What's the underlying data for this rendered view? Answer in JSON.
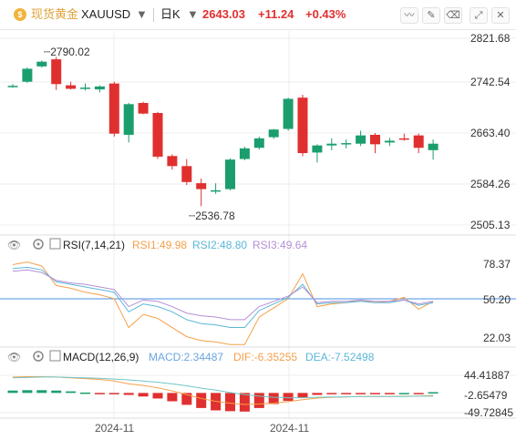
{
  "header": {
    "symbol_name": "现货黄金",
    "ticker": "XAUUSD",
    "timeframe": "日K",
    "last_price": "2643.03",
    "change": "+11.24",
    "change_pct": "+0.43%",
    "icons": [
      "gold-coin-icon",
      "chevron-down-icon",
      "chevron-down-icon",
      "line-chart-icon",
      "pencil-icon",
      "eraser-icon",
      "expand-icon",
      "close-icon"
    ]
  },
  "colors": {
    "up": "#1b9e6e",
    "down": "#e02f2f",
    "rsi1": "#f5a04a",
    "rsi2": "#5ab7d8",
    "rsi3": "#b48fd6",
    "macd": "#6aa6e0",
    "dif": "#f5a04a",
    "dea": "#6ec6c8",
    "ref_line": "#4a90e2"
  },
  "chart_data": [
    {
      "type": "candlestick",
      "y_ticks": [
        "2821.68",
        "2742.54",
        "2663.40",
        "2584.26",
        "2505.13"
      ],
      "ylim": [
        2505.13,
        2821.68
      ],
      "high_label": "2790.02",
      "low_label": "2536.78",
      "x_tick_labels": [
        "2024-11",
        "2024-11"
      ],
      "candles": [
        {
          "o": 2740,
          "h": 2744,
          "l": 2738,
          "c": 2741
        },
        {
          "o": 2748,
          "h": 2772,
          "l": 2746,
          "c": 2770
        },
        {
          "o": 2774,
          "h": 2784,
          "l": 2772,
          "c": 2782
        },
        {
          "o": 2786,
          "h": 2790,
          "l": 2734,
          "c": 2744
        },
        {
          "o": 2742,
          "h": 2748,
          "l": 2735,
          "c": 2736
        },
        {
          "o": 2738,
          "h": 2745,
          "l": 2733,
          "c": 2738
        },
        {
          "o": 2735,
          "h": 2742,
          "l": 2730,
          "c": 2740
        },
        {
          "o": 2745,
          "h": 2748,
          "l": 2655,
          "c": 2660
        },
        {
          "o": 2658,
          "h": 2712,
          "l": 2645,
          "c": 2710
        },
        {
          "o": 2712,
          "h": 2714,
          "l": 2693,
          "c": 2694
        },
        {
          "o": 2695,
          "h": 2697,
          "l": 2617,
          "c": 2621
        },
        {
          "o": 2622,
          "h": 2625,
          "l": 2599,
          "c": 2605
        },
        {
          "o": 2605,
          "h": 2617,
          "l": 2573,
          "c": 2578
        },
        {
          "o": 2576,
          "h": 2584,
          "l": 2537,
          "c": 2566
        },
        {
          "o": 2562,
          "h": 2576,
          "l": 2558,
          "c": 2564
        },
        {
          "o": 2566,
          "h": 2618,
          "l": 2564,
          "c": 2616
        },
        {
          "o": 2617,
          "h": 2638,
          "l": 2615,
          "c": 2635
        },
        {
          "o": 2636,
          "h": 2655,
          "l": 2633,
          "c": 2652
        },
        {
          "o": 2654,
          "h": 2668,
          "l": 2651,
          "c": 2667
        },
        {
          "o": 2668,
          "h": 2721,
          "l": 2665,
          "c": 2719
        },
        {
          "o": 2721,
          "h": 2726,
          "l": 2622,
          "c": 2627
        },
        {
          "o": 2628,
          "h": 2642,
          "l": 2611,
          "c": 2640
        },
        {
          "o": 2640,
          "h": 2652,
          "l": 2632,
          "c": 2643
        },
        {
          "o": 2642,
          "h": 2650,
          "l": 2635,
          "c": 2644
        },
        {
          "o": 2643,
          "h": 2665,
          "l": 2639,
          "c": 2657
        },
        {
          "o": 2658,
          "h": 2661,
          "l": 2627,
          "c": 2642
        },
        {
          "o": 2645,
          "h": 2653,
          "l": 2639,
          "c": 2648
        },
        {
          "o": 2652,
          "h": 2660,
          "l": 2648,
          "c": 2650
        },
        {
          "o": 2657,
          "h": 2660,
          "l": 2627,
          "c": 2636
        },
        {
          "o": 2632,
          "h": 2650,
          "l": 2616,
          "c": 2643
        }
      ]
    },
    {
      "type": "line",
      "title": "RSI(7,14,21)",
      "y_ticks": [
        "78.37",
        "50.20",
        "22.03"
      ],
      "ylim": [
        22.03,
        78.37
      ],
      "ref_level": 50.2,
      "series": [
        {
          "name": "RSI1",
          "current": "49.98",
          "values": [
            78,
            80,
            77,
            62,
            60,
            57,
            55,
            52,
            30,
            40,
            37,
            30,
            23,
            20,
            19,
            17,
            17,
            38,
            45,
            52,
            71,
            46,
            48,
            49,
            51,
            49,
            50,
            53,
            44,
            50
          ]
        },
        {
          "name": "RSI2",
          "current": "48.80",
          "values": [
            75,
            76,
            74,
            65,
            63,
            61,
            59,
            57,
            42,
            48,
            46,
            42,
            36,
            33,
            32,
            30,
            30,
            43,
            48,
            53,
            63,
            48,
            49,
            49,
            50,
            49,
            49,
            51,
            47,
            49
          ]
        },
        {
          "name": "RSI3",
          "current": "49.64",
          "values": [
            73,
            74,
            72,
            66,
            64,
            63,
            61,
            59,
            46,
            51,
            50,
            46,
            41,
            39,
            38,
            36,
            36,
            46,
            50,
            54,
            61,
            49,
            50,
            50,
            51,
            50,
            50,
            51,
            48,
            50
          ]
        }
      ]
    },
    {
      "type": "bar",
      "title": "MACD(12,26,9)",
      "y_ticks": [
        "44.41887",
        "-2.65479",
        "-49.72845"
      ],
      "ylim": [
        -49.72845,
        44.41887
      ],
      "series": [
        {
          "name": "MACD",
          "current": "2.34487",
          "values": [
            6,
            7,
            7,
            6,
            4,
            1,
            -1,
            -3,
            -5,
            -9,
            -14,
            -21,
            -30,
            -38,
            -44,
            -46,
            -47,
            -38,
            -28,
            -20,
            -12,
            -5,
            -3,
            -2,
            -1,
            -2,
            -1,
            0,
            -2,
            2
          ]
        },
        {
          "name": "DIF",
          "current": "-6.35255",
          "values": [
            40,
            41,
            41,
            40,
            38,
            36,
            34,
            30,
            23,
            19,
            13,
            5,
            -4,
            -14,
            -21,
            -26,
            -29,
            -28,
            -26,
            -22,
            -17,
            -13,
            -11,
            -10,
            -9,
            -9,
            -9,
            -8,
            -8,
            -6
          ]
        },
        {
          "name": "DEA",
          "current": "-7.52498",
          "values": [
            38,
            39,
            40,
            40,
            39,
            38,
            37,
            35,
            33,
            30,
            27,
            23,
            18,
            12,
            7,
            1,
            -4,
            -8,
            -11,
            -12,
            -12,
            -11,
            -10,
            -10,
            -9,
            -9,
            -9,
            -9,
            -8,
            -8
          ]
        }
      ]
    }
  ]
}
